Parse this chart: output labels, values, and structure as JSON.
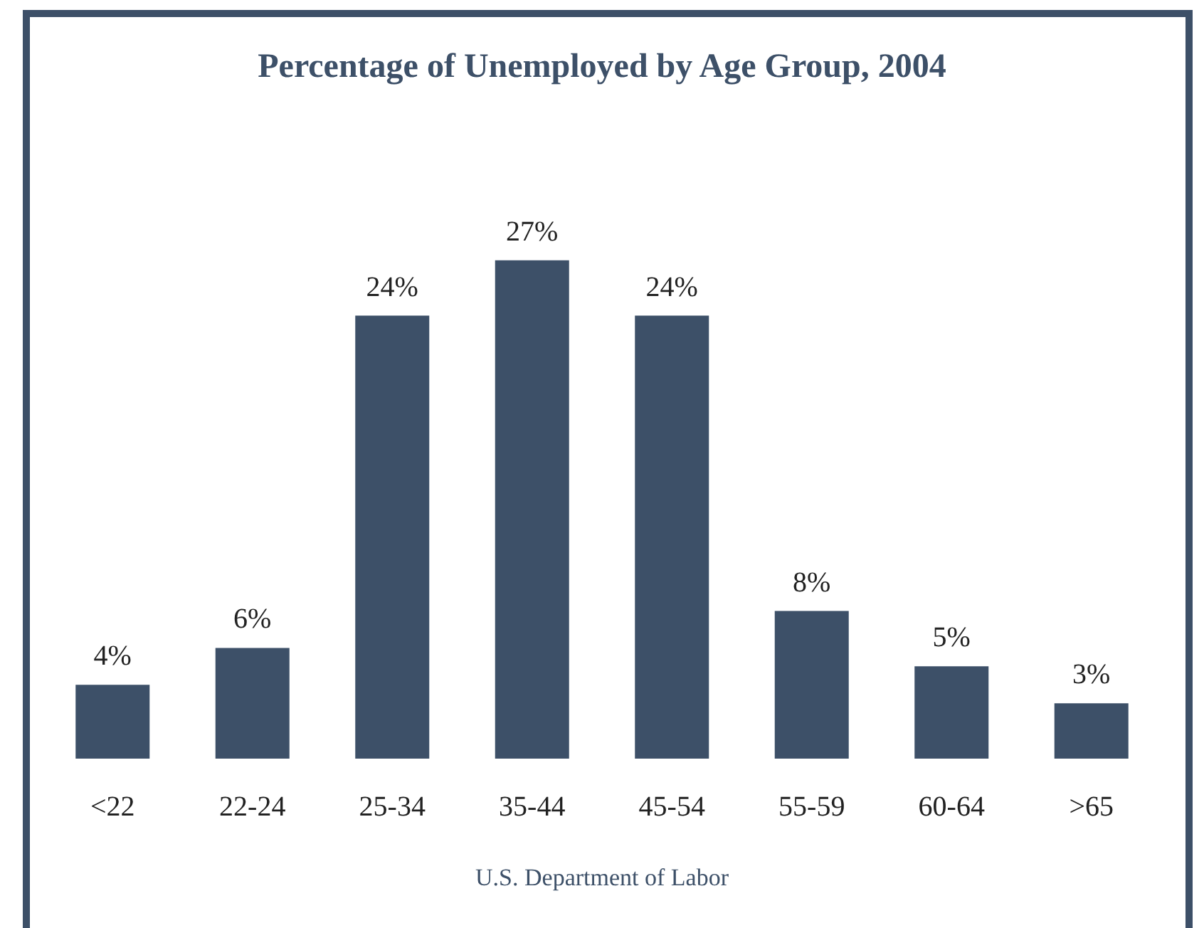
{
  "chart_data": {
    "type": "bar",
    "title": "Percentage of Unemployed by Age Group, 2004",
    "categories": [
      "<22",
      "22-24",
      "25-34",
      "35-44",
      "45-54",
      "55-59",
      "60-64",
      ">65"
    ],
    "values": [
      4,
      6,
      24,
      27,
      24,
      8,
      5,
      3
    ],
    "value_labels": [
      "4%",
      "6%",
      "24%",
      "27%",
      "24%",
      "8%",
      "5%",
      "3%"
    ],
    "color": "#3d5068",
    "annotations": [
      "U.S. Department of Labor"
    ]
  }
}
